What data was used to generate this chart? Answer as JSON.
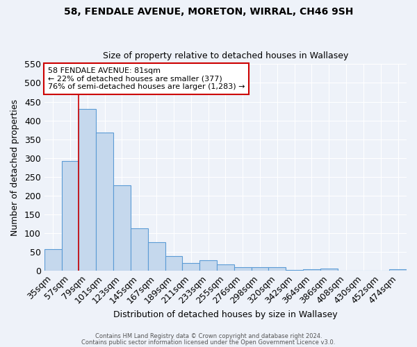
{
  "title1": "58, FENDALE AVENUE, MORETON, WIRRAL, CH46 9SH",
  "title2": "Size of property relative to detached houses in Wallasey",
  "xlabel": "Distribution of detached houses by size in Wallasey",
  "ylabel": "Number of detached properties",
  "bar_color": "#c5d8ed",
  "bar_edge_color": "#5b9bd5",
  "categories": [
    "35sqm",
    "57sqm",
    "79sqm",
    "101sqm",
    "123sqm",
    "145sqm",
    "167sqm",
    "189sqm",
    "211sqm",
    "233sqm",
    "255sqm",
    "276sqm",
    "298sqm",
    "320sqm",
    "342sqm",
    "364sqm",
    "386sqm",
    "408sqm",
    "430sqm",
    "452sqm",
    "474sqm"
  ],
  "values": [
    57,
    293,
    430,
    367,
    227,
    113,
    76,
    39,
    21,
    29,
    18,
    9,
    10,
    10,
    3,
    5,
    6,
    0,
    0,
    0,
    5
  ],
  "ylim": [
    0,
    550
  ],
  "yticks": [
    0,
    50,
    100,
    150,
    200,
    250,
    300,
    350,
    400,
    450,
    500,
    550
  ],
  "vline_index": 2,
  "vline_color": "#cc0000",
  "annotation_title": "58 FENDALE AVENUE: 81sqm",
  "annotation_line1": "← 22% of detached houses are smaller (377)",
  "annotation_line2": "76% of semi-detached houses are larger (1,283) →",
  "annotation_box_color": "#ffffff",
  "annotation_box_edge": "#cc0000",
  "footer1": "Contains HM Land Registry data © Crown copyright and database right 2024.",
  "footer2": "Contains public sector information licensed under the Open Government Licence v3.0.",
  "background_color": "#eef2f9",
  "grid_color": "#ffffff"
}
